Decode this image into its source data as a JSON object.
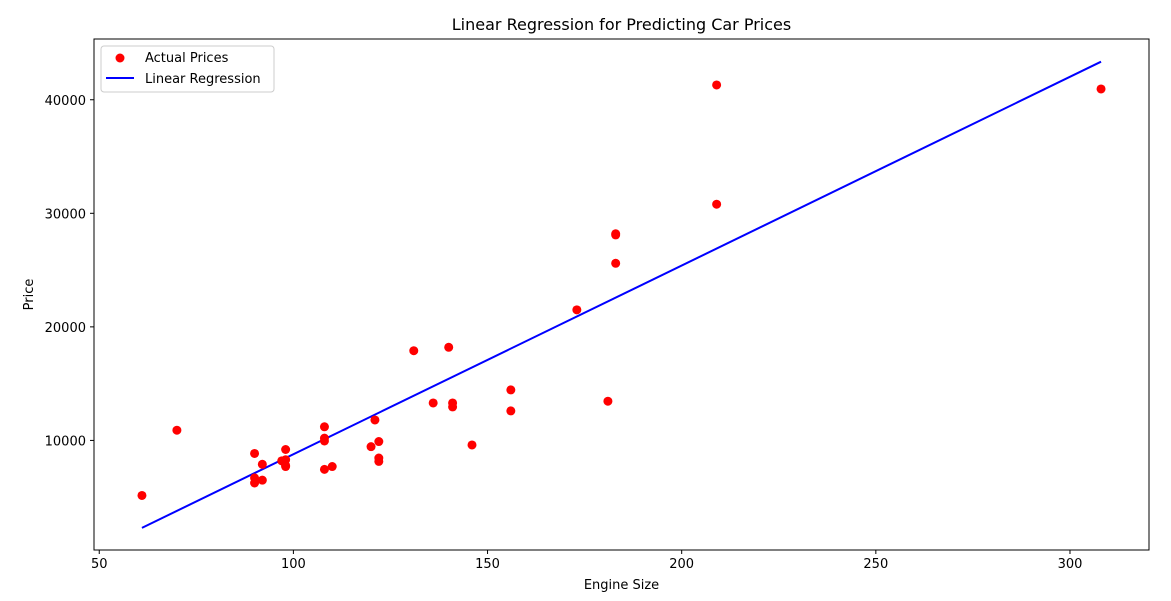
{
  "chart_data": {
    "type": "scatter",
    "title": "Linear Regression for Predicting Car Prices",
    "xlabel": "Engine Size",
    "ylabel": "Price",
    "xlim": [
      48.65,
      320.35
    ],
    "ylim": [
      350,
      45350
    ],
    "xticks": [
      50,
      100,
      150,
      200,
      250,
      300
    ],
    "yticks": [
      10000,
      20000,
      30000,
      40000
    ],
    "grid": false,
    "legend": {
      "placement": "top-left",
      "entries": [
        {
          "label": "Actual Prices",
          "kind": "marker",
          "color": "#ff0000"
        },
        {
          "label": "Linear Regression",
          "kind": "line",
          "color": "#0000ff"
        }
      ]
    },
    "series": [
      {
        "name": "Actual Prices",
        "kind": "scatter",
        "color": "#ff0000",
        "points": [
          [
            61,
            5150
          ],
          [
            70,
            10900
          ],
          [
            90,
            8850
          ],
          [
            90,
            6700
          ],
          [
            90,
            6250
          ],
          [
            92,
            7900
          ],
          [
            92,
            6500
          ],
          [
            97,
            8200
          ],
          [
            98,
            9200
          ],
          [
            98,
            8300
          ],
          [
            98,
            7800
          ],
          [
            98,
            7700
          ],
          [
            108,
            11200
          ],
          [
            108,
            10200
          ],
          [
            108,
            9950
          ],
          [
            108,
            7450
          ],
          [
            110,
            7700
          ],
          [
            120,
            9450
          ],
          [
            121,
            11800
          ],
          [
            122,
            9900
          ],
          [
            122,
            8450
          ],
          [
            122,
            8150
          ],
          [
            131,
            17900
          ],
          [
            136,
            13300
          ],
          [
            140,
            18200
          ],
          [
            141,
            13300
          ],
          [
            141,
            12950
          ],
          [
            146,
            9600
          ],
          [
            156,
            14450
          ],
          [
            156,
            12600
          ],
          [
            173,
            21500
          ],
          [
            181,
            13450
          ],
          [
            183,
            28200
          ],
          [
            183,
            28100
          ],
          [
            183,
            25600
          ],
          [
            209,
            41300
          ],
          [
            209,
            30800
          ],
          [
            308,
            40950
          ]
        ]
      },
      {
        "name": "Linear Regression",
        "kind": "line",
        "color": "#0000ff",
        "points": [
          [
            61,
            2300
          ],
          [
            308,
            43350
          ]
        ]
      }
    ]
  }
}
